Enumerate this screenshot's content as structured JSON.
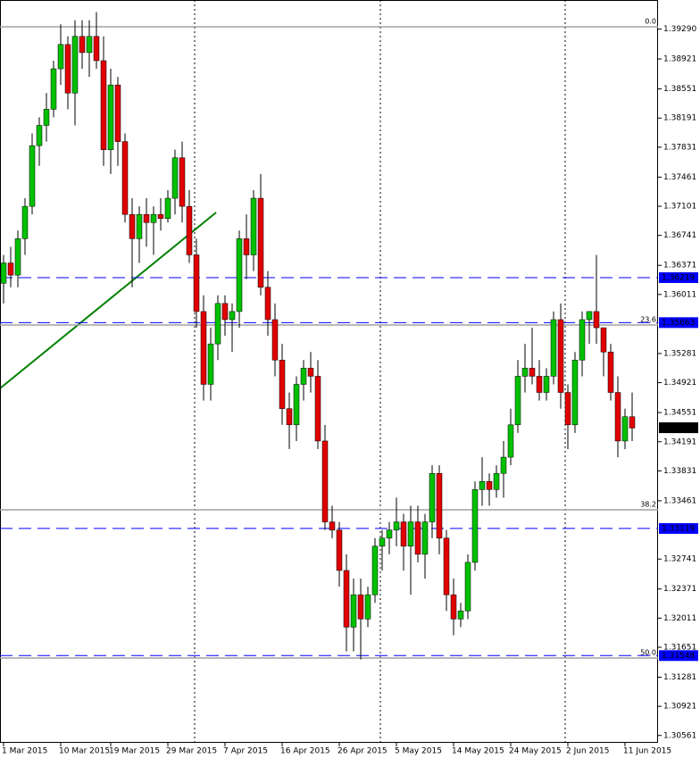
{
  "chart_data": {
    "type": "candlestick",
    "categories": [
      "1 Mar 2015",
      null,
      null,
      null,
      null,
      null,
      null,
      null,
      "10 Mar 2015",
      null,
      null,
      null,
      null,
      null,
      null,
      "19 Mar 2015",
      null,
      null,
      null,
      null,
      null,
      null,
      null,
      "29 Mar 2015",
      null,
      null,
      null,
      null,
      null,
      null,
      null,
      "7 Apr 2015",
      null,
      null,
      null,
      null,
      null,
      null,
      null,
      "16 Apr 2015",
      null,
      null,
      null,
      null,
      null,
      null,
      null,
      "26 Apr 2015",
      null,
      null,
      null,
      null,
      null,
      null,
      null,
      "5 May 2015",
      null,
      null,
      null,
      null,
      null,
      null,
      null,
      "14 May 2015",
      null,
      null,
      null,
      null,
      null,
      null,
      null,
      "24 May 2015",
      null,
      null,
      null,
      null,
      null,
      null,
      null,
      "2 Jun 2015",
      null,
      null,
      null,
      null,
      null,
      null,
      null,
      "11 Jun 2015",
      null
    ],
    "open": [
      1.3615,
      1.364,
      1.3625,
      1.367,
      1.371,
      1.3785,
      1.381,
      1.383,
      1.388,
      1.391,
      1.385,
      1.392,
      1.39,
      1.392,
      1.389,
      1.378,
      1.386,
      1.379,
      1.37,
      1.367,
      1.37,
      1.369,
      1.37,
      1.3695,
      1.372,
      1.377,
      1.371,
      1.365,
      1.358,
      1.349,
      1.354,
      1.359,
      1.357,
      1.358,
      1.367,
      1.365,
      1.372,
      1.361,
      1.357,
      1.352,
      1.346,
      1.344,
      1.349,
      1.351,
      1.35,
      1.342,
      1.332,
      1.331,
      1.326,
      1.319,
      1.323,
      1.32,
      1.323,
      1.329,
      1.33,
      1.331,
      1.332,
      1.329,
      1.332,
      1.328,
      1.332,
      1.338,
      1.33,
      1.323,
      1.32,
      1.321,
      1.327,
      1.336,
      1.337,
      1.336,
      1.338,
      1.34,
      1.344,
      1.35,
      1.351,
      1.35,
      1.348,
      1.35,
      1.357,
      1.348,
      1.344,
      1.352,
      1.357,
      1.358,
      1.356,
      1.353,
      1.348,
      1.342,
      1.345
    ],
    "high": [
      1.365,
      1.366,
      1.368,
      1.372,
      1.38,
      1.382,
      1.385,
      1.389,
      1.3935,
      1.392,
      1.394,
      1.394,
      1.394,
      1.395,
      1.392,
      1.388,
      1.387,
      1.38,
      1.372,
      1.371,
      1.372,
      1.371,
      1.372,
      1.373,
      1.378,
      1.379,
      1.373,
      1.367,
      1.36,
      1.356,
      1.36,
      1.36,
      1.359,
      1.368,
      1.37,
      1.373,
      1.375,
      1.363,
      1.359,
      1.354,
      1.348,
      1.35,
      1.352,
      1.353,
      1.352,
      1.344,
      1.334,
      1.332,
      1.328,
      1.325,
      1.325,
      1.324,
      1.33,
      1.331,
      1.332,
      1.335,
      1.333,
      1.334,
      1.334,
      1.333,
      1.339,
      1.339,
      1.331,
      1.325,
      1.322,
      1.328,
      1.337,
      1.34,
      1.338,
      1.339,
      1.342,
      1.346,
      1.352,
      1.354,
      1.356,
      1.352,
      1.351,
      1.358,
      1.359,
      1.349,
      1.353,
      1.358,
      1.358,
      1.365,
      1.356,
      1.354,
      1.35,
      1.346,
      1.348
    ],
    "low": [
      1.359,
      1.361,
      1.361,
      1.365,
      1.37,
      1.376,
      1.379,
      1.382,
      1.386,
      1.383,
      1.381,
      1.388,
      1.387,
      1.388,
      1.376,
      1.375,
      1.376,
      1.369,
      1.361,
      1.364,
      1.366,
      1.365,
      1.368,
      1.369,
      1.37,
      1.369,
      1.364,
      1.356,
      1.347,
      1.347,
      1.352,
      1.355,
      1.353,
      1.356,
      1.362,
      1.363,
      1.36,
      1.355,
      1.35,
      1.344,
      1.341,
      1.342,
      1.347,
      1.348,
      1.341,
      1.331,
      1.33,
      1.324,
      1.316,
      1.316,
      1.315,
      1.319,
      1.322,
      1.326,
      1.328,
      1.329,
      1.326,
      1.323,
      1.327,
      1.325,
      1.33,
      1.328,
      1.321,
      1.318,
      1.319,
      1.32,
      1.326,
      1.334,
      1.334,
      1.335,
      1.335,
      1.339,
      1.343,
      1.348,
      1.349,
      1.347,
      1.347,
      1.349,
      1.346,
      1.341,
      1.343,
      1.35,
      1.354,
      1.354,
      1.35,
      1.347,
      1.34,
      1.341,
      1.342
    ],
    "close": [
      1.364,
      1.3625,
      1.367,
      1.371,
      1.3785,
      1.381,
      1.383,
      1.388,
      1.391,
      1.385,
      1.392,
      1.39,
      1.392,
      1.389,
      1.378,
      1.386,
      1.379,
      1.37,
      1.367,
      1.37,
      1.369,
      1.37,
      1.3695,
      1.372,
      1.377,
      1.371,
      1.365,
      1.358,
      1.349,
      1.354,
      1.359,
      1.357,
      1.358,
      1.367,
      1.365,
      1.372,
      1.361,
      1.357,
      1.352,
      1.346,
      1.344,
      1.349,
      1.351,
      1.35,
      1.342,
      1.332,
      1.331,
      1.326,
      1.319,
      1.323,
      1.32,
      1.323,
      1.329,
      1.33,
      1.331,
      1.332,
      1.329,
      1.332,
      1.328,
      1.332,
      1.338,
      1.33,
      1.323,
      1.32,
      1.321,
      1.327,
      1.336,
      1.337,
      1.336,
      1.338,
      1.34,
      1.344,
      1.35,
      1.351,
      1.35,
      1.348,
      1.35,
      1.357,
      1.348,
      1.344,
      1.352,
      1.357,
      1.358,
      1.356,
      1.353,
      1.348,
      1.342,
      1.345,
      1.3436
    ],
    "up_color": "#00c000",
    "down_color": "#e00000",
    "ylim": [
      1.3047,
      1.3965
    ],
    "yticks": [
      {
        "value": 1.3929,
        "label": "1.39290"
      },
      1.38921,
      1.38551,
      1.38191,
      1.37831,
      1.37461,
      1.37101,
      1.36741,
      1.36371,
      1.36011,
      1.35281,
      1.34921,
      1.34551,
      1.34191,
      1.33831,
      1.33461,
      1.32741,
      1.32371,
      1.32011,
      1.31651,
      1.31281,
      1.30921,
      1.30561
    ],
    "levels": [
      {
        "value": 1.36219,
        "color": "#0000ff",
        "dashed": true
      },
      {
        "value": 1.35663,
        "color": "#0000ff",
        "dashed": true
      },
      {
        "value": 1.34364,
        "color": "#000000",
        "dashed": false
      },
      {
        "value": 1.33119,
        "color": "#0000ff",
        "dashed": true
      },
      {
        "value": 1.31548,
        "color": "#0000ff",
        "dashed": true
      }
    ],
    "fib": {
      "color": "#a0a0a0",
      "levels": [
        {
          "label": "0.0",
          "value": 1.39319
        },
        {
          "label": "23.6",
          "value": 1.35634
        },
        {
          "label": "38.2",
          "value": 1.3335
        },
        {
          "label": "50.0",
          "value": 1.31518
        }
      ]
    }
  }
}
